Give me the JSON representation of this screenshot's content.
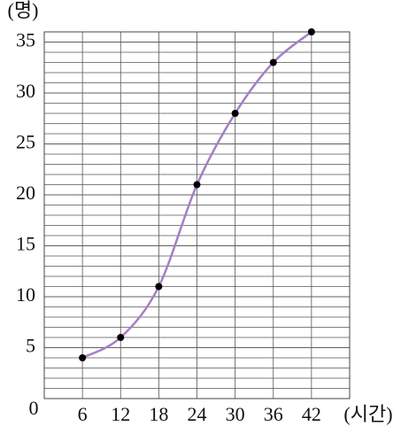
{
  "chart_data": {
    "type": "line",
    "y_label": "(명)",
    "x_label": "(시간)",
    "origin_label": "0",
    "x": [
      6,
      12,
      18,
      24,
      30,
      36,
      42
    ],
    "series": [
      {
        "color": "#a57fc4",
        "values": [
          4,
          6,
          11,
          21,
          28,
          33,
          36
        ]
      }
    ],
    "xlim": [
      0,
      48
    ],
    "xticks": [
      6,
      12,
      18,
      24,
      30,
      36,
      42
    ],
    "ylim": [
      0,
      36
    ],
    "yticks": [
      5,
      10,
      15,
      20,
      25,
      30,
      35
    ],
    "grid": true,
    "marker_color": "#000000"
  }
}
